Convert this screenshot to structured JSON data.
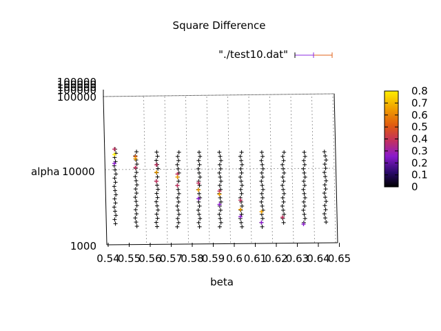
{
  "chart_data": {
    "type": "scatter",
    "title": "Square Difference",
    "xlabel": "beta",
    "ylabel": "alpha",
    "x_ticks": [
      "0.54",
      "0.55",
      "0.56",
      "0.57",
      "0.58",
      "0.59",
      "0.6",
      "0.61",
      "0.62",
      "0.63",
      "0.64",
      "0.65"
    ],
    "y_ticks": [
      "1000",
      "10000",
      "100000"
    ],
    "y_scale": "log",
    "ylim": [
      1000,
      100000
    ],
    "xlim": [
      0.54,
      0.65
    ],
    "legend": {
      "entry": "\"./test10.dat\"",
      "placement": "top-right"
    },
    "colorbar": {
      "ticks": [
        "0",
        "0.1",
        "0.2",
        "0.3",
        "0.4",
        "0.5",
        "0.6",
        "0.7",
        "0.8"
      ],
      "range": [
        0,
        0.8
      ]
    },
    "grid": true,
    "series": [
      {
        "beta": 0.544,
        "alpha_max": 19500,
        "alpha_min": 1700,
        "colored": [
          [
            19500,
            0.32
          ],
          [
            16500,
            0.7
          ],
          [
            12500,
            0.25
          ]
        ]
      },
      {
        "beta": 0.554,
        "alpha_max": 18000,
        "alpha_min": 1700,
        "colored": [
          [
            15500,
            0.4
          ],
          [
            14500,
            0.62
          ],
          [
            11000,
            0.3
          ]
        ]
      },
      {
        "beta": 0.564,
        "alpha_max": 17800,
        "alpha_min": 1700,
        "colored": [
          [
            12000,
            0.3
          ],
          [
            9500,
            0.6
          ],
          [
            7200,
            0.28
          ]
        ]
      },
      {
        "beta": 0.574,
        "alpha_max": 17700,
        "alpha_min": 1700,
        "colored": [
          [
            9000,
            0.35
          ],
          [
            8200,
            0.65
          ],
          [
            6300,
            0.28
          ]
        ]
      },
      {
        "beta": 0.584,
        "alpha_max": 17700,
        "alpha_min": 1700,
        "colored": [
          [
            6800,
            0.3
          ],
          [
            5500,
            0.62
          ],
          [
            4200,
            0.25
          ]
        ]
      },
      {
        "beta": 0.594,
        "alpha_max": 17700,
        "alpha_min": 1700,
        "colored": [
          [
            5300,
            0.33
          ],
          [
            4800,
            0.6
          ],
          [
            3500,
            0.25
          ]
        ]
      },
      {
        "beta": 0.604,
        "alpha_max": 17700,
        "alpha_min": 1700,
        "colored": [
          [
            4000,
            0.35
          ],
          [
            3000,
            0.62
          ],
          [
            2400,
            0.25
          ]
        ]
      },
      {
        "beta": 0.614,
        "alpha_max": 17700,
        "alpha_min": 1700,
        "colored": [
          [
            2800,
            0.6
          ],
          [
            2000,
            0.25
          ]
        ]
      },
      {
        "beta": 0.624,
        "alpha_max": 17700,
        "alpha_min": 1800,
        "colored": [
          [
            2350,
            0.3
          ]
        ]
      },
      {
        "beta": 0.634,
        "alpha_max": 17700,
        "alpha_min": 1800,
        "colored": [
          [
            1900,
            0.25
          ]
        ]
      },
      {
        "beta": 0.644,
        "alpha_max": 18000,
        "alpha_min": 1800,
        "colored": []
      }
    ]
  }
}
